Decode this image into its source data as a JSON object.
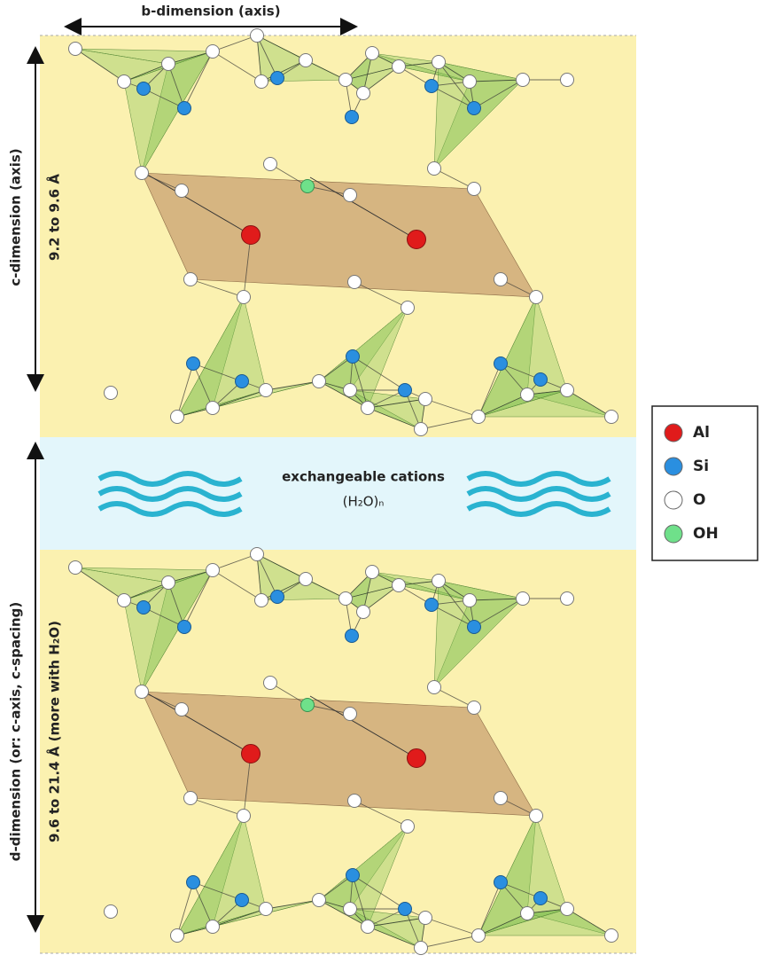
{
  "axes": {
    "b_dimension": "b-dimension (axis)",
    "c_dimension": "c-dimension (axis)",
    "c_range": "9.2 to 9.6 Å",
    "d_dimension": "d-dimension (or: c-axis, c-spacing)",
    "d_range": "9.6 to 21.4 Å (more with H₂O)"
  },
  "interlayer": {
    "label": "exchangeable cations",
    "formula": "(H₂O)ₙ"
  },
  "legend": [
    {
      "label": "Al",
      "color": "#e01b1b"
    },
    {
      "label": "Si",
      "color": "#2a8fe0"
    },
    {
      "label": "O",
      "color": "#ffffff"
    },
    {
      "label": "OH",
      "color": "#6fe08a"
    }
  ]
}
